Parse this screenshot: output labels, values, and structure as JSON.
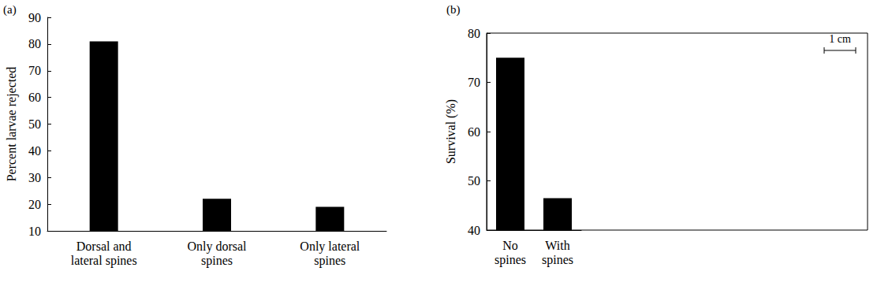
{
  "chart_data": [
    {
      "type": "bar",
      "title": "(a)",
      "categories": [
        "Dorsal and lateral spines",
        "Only dorsal spines",
        "Only lateral spines"
      ],
      "values": [
        81,
        22,
        19
      ],
      "color": "#000000",
      "ylabel": "Percent larvae rejected",
      "ylim": [
        10,
        90
      ],
      "yticks": [
        10,
        20,
        30,
        40,
        50,
        60,
        70,
        80,
        90
      ],
      "grid": false
    },
    {
      "type": "bar",
      "title": "(b)",
      "categories": [
        "No spines",
        "With spines"
      ],
      "values": [
        75,
        46.5
      ],
      "color": "#000000",
      "ylabel": "Survival (%)",
      "ylim": [
        40,
        80
      ],
      "yticks": [
        40,
        50,
        60,
        70,
        80
      ],
      "grid": false,
      "annotations": [
        "1 cm"
      ]
    }
  ]
}
